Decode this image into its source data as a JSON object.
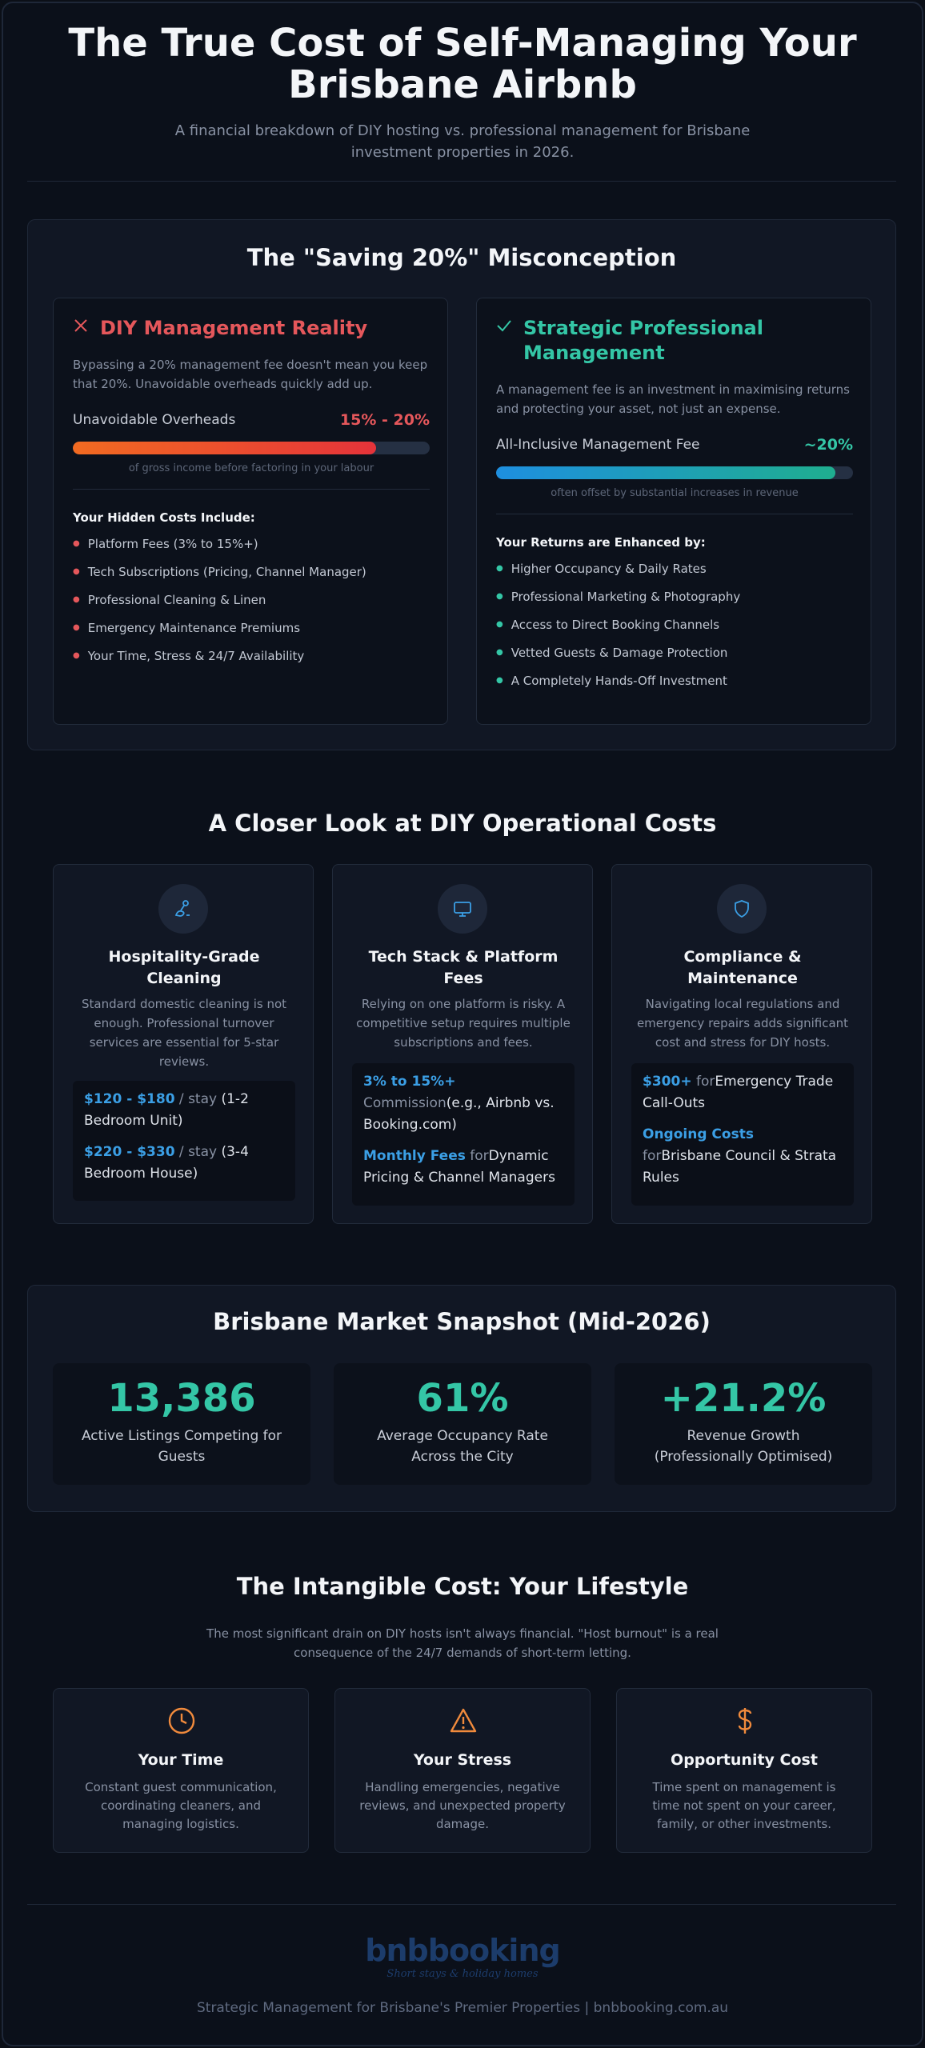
{
  "header": {
    "title_line1": "The True Cost of Self-Managing Your",
    "title_line2": "Brisbane Airbnb",
    "subtitle": "A financial breakdown of DIY hosting vs. professional management for Brisbane investment properties in 2026."
  },
  "misconception": {
    "title": "The \"Saving 20%\" Misconception",
    "diy": {
      "icon": "close-icon",
      "title": "DIY Management Reality",
      "desc": "Bypassing a 20% management fee doesn't mean you keep that 20%. Unavoidable overheads quickly add up.",
      "metric_label": "Unavoidable Overheads",
      "metric_value": "15% - 20%",
      "bar_fill": 0.85,
      "bar_note": "of gross income before factoring in your labour",
      "list_title": "Your Hidden Costs Include:",
      "items": [
        "Platform Fees (3% to 15%+)",
        "Tech Subscriptions (Pricing, Channel Manager)",
        "Professional Cleaning & Linen",
        "Emergency Maintenance Premiums",
        "Your Time, Stress & 24/7 Availability"
      ],
      "color": "#e5484d"
    },
    "pro": {
      "icon": "check-icon",
      "title_line1": "Strategic Professional",
      "title_line2": "Management",
      "desc": "A management fee is an investment in maximising returns and protecting your asset, not just an expense.",
      "metric_label": "All-Inclusive Management Fee",
      "metric_value": "~20%",
      "bar_fill": 0.95,
      "bar_note": "often offset by substantial increases in revenue",
      "list_title": "Your Returns are Enhanced by:",
      "items": [
        "Higher Occupancy & Daily Rates",
        "Professional Marketing & Photography",
        "Access to Direct Booking Channels",
        "Vetted Guests & Damage Protection",
        "A Completely Hands-Off Investment"
      ],
      "color": "#34c6a6"
    }
  },
  "operational": {
    "title": "A Closer Look at DIY Operational Costs",
    "cards": [
      {
        "icon": "cleaning-icon",
        "title_line1": "Hospitality-Grade",
        "title_line2": "Cleaning",
        "desc": "Standard domestic cleaning is not enough. Professional turnover services are essential for 5-star reviews.",
        "lines": [
          {
            "hl": "$120 - $180",
            "mu": " / stay ",
            "tx": "(1-2 Bedroom Unit)"
          },
          {
            "hl": "$220 - $330",
            "mu": " / stay ",
            "tx": "(3-4 Bedroom House)"
          }
        ]
      },
      {
        "icon": "monitor-icon",
        "title_line1": "Tech Stack & Platform",
        "title_line2": "Fees",
        "desc": "Relying on one platform is risky. A competitive setup requires multiple subscriptions and fees.",
        "lines": [
          {
            "hl": "3% to 15%+",
            "mu": " Commission",
            "tx": "(e.g., Airbnb vs. Booking.com)"
          },
          {
            "hl": "Monthly Fees",
            "mu": " for",
            "tx": "Dynamic Pricing & Channel Managers"
          }
        ]
      },
      {
        "icon": "shield-icon",
        "title_line1": "Compliance &",
        "title_line2": "Maintenance",
        "desc": "Navigating local regulations and emergency repairs adds significant cost and stress for DIY hosts.",
        "lines": [
          {
            "hl": "$300+",
            "mu": " for",
            "tx": "Emergency Trade Call-Outs"
          },
          {
            "hl": "Ongoing Costs",
            "mu": " for",
            "tx": "Brisbane Council & Strata Rules"
          }
        ]
      }
    ]
  },
  "market": {
    "title": "Brisbane Market Snapshot (Mid-2026)",
    "stats": [
      {
        "value": "13,386",
        "label_line1": "Active Listings Competing for",
        "label_line2": "Guests"
      },
      {
        "value": "61%",
        "label_line1": "Average Occupancy Rate",
        "label_line2": "Across the City"
      },
      {
        "value": "+21.2%",
        "label_line1": "Revenue Growth",
        "label_line2": "(Professionally Optimised)"
      }
    ]
  },
  "intangible": {
    "title": "The Intangible Cost: Your Lifestyle",
    "desc": "The most significant drain on DIY hosts isn't always financial. \"Host burnout\" is a real consequence of the 24/7 demands of short-term letting.",
    "cards": [
      {
        "icon": "clock-icon",
        "title": "Your Time",
        "desc": "Constant guest communication, coordinating cleaners, and managing logistics."
      },
      {
        "icon": "warning-icon",
        "title": "Your Stress",
        "desc": "Handling emergencies, negative reviews, and unexpected property damage."
      },
      {
        "icon": "dollar-icon",
        "title": "Opportunity Cost",
        "desc": "Time spent on management is time not spent on your career, family, or other investments."
      }
    ],
    "accent": "#f08a3c"
  },
  "footer": {
    "logo_text": "bnbbooking",
    "logo_tagline": "Short stays & holiday homes",
    "text": "Strategic Management for Brisbane's Premier Properties | bnbbooking.com.au"
  }
}
